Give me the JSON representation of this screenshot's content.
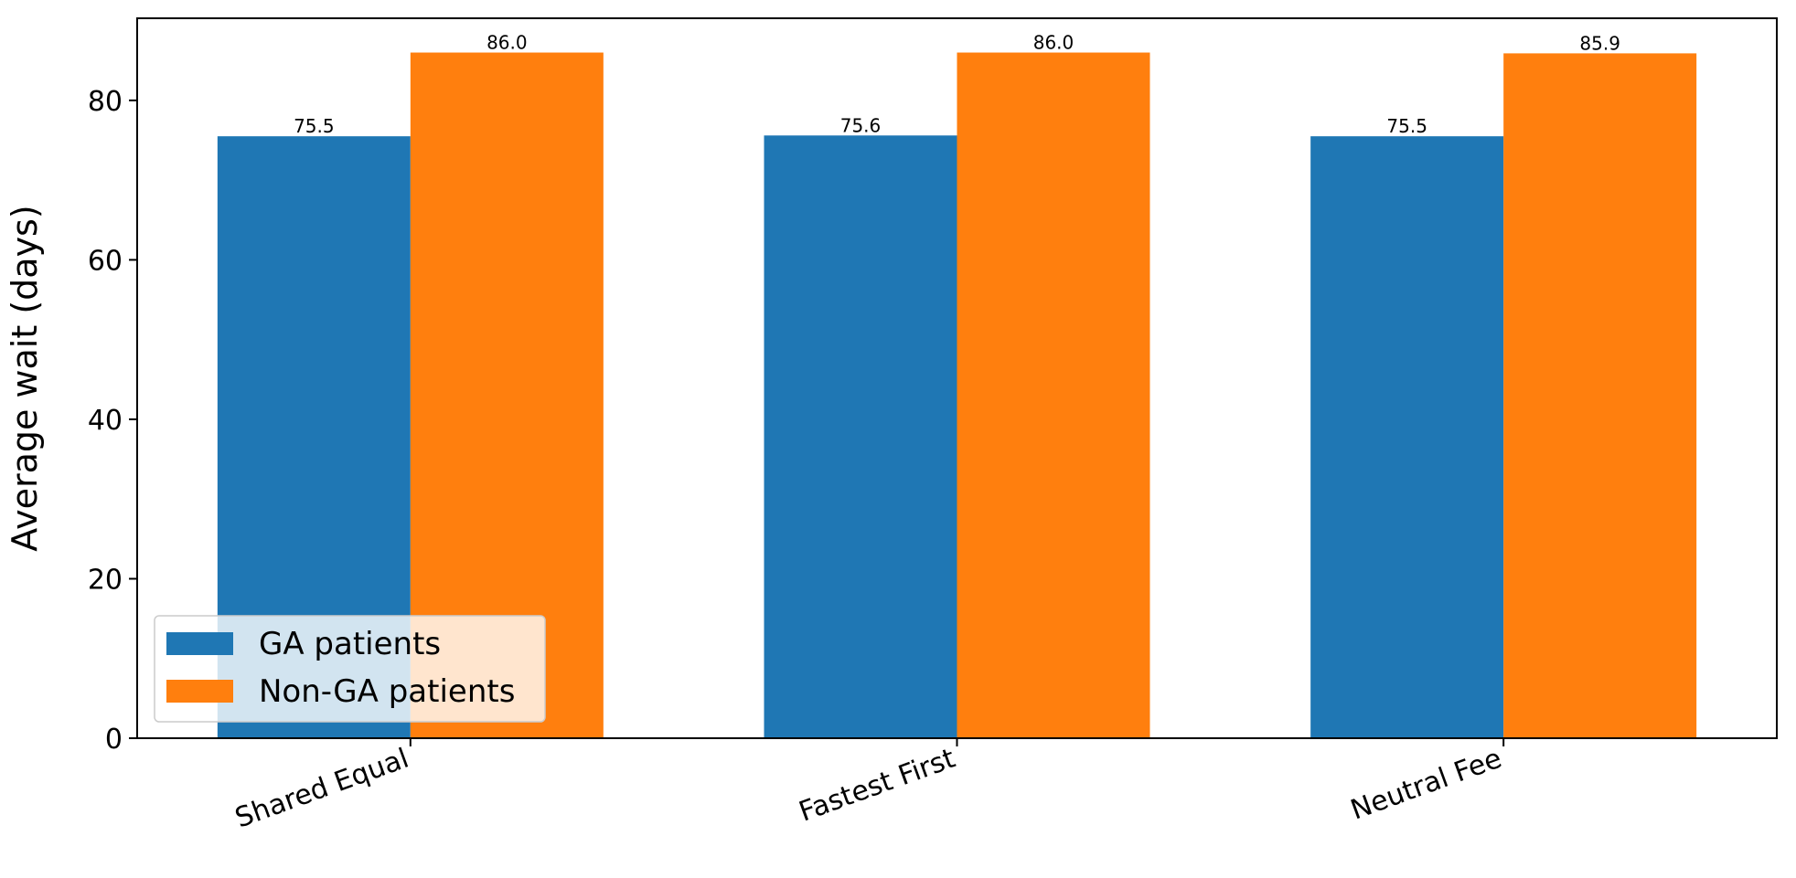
{
  "chart_data": {
    "type": "bar",
    "categories": [
      "Shared Equal",
      "Fastest First",
      "Neutral Fee"
    ],
    "series": [
      {
        "name": "GA patients",
        "values": [
          75.5,
          75.6,
          75.5
        ],
        "color": "#1f77b4"
      },
      {
        "name": "Non-GA patients",
        "values": [
          86.0,
          86.0,
          85.9
        ],
        "color": "#ff7f0e"
      }
    ],
    "data_labels": [
      [
        "75.5",
        "75.6",
        "75.5"
      ],
      [
        "86.0",
        "86.0",
        "85.9"
      ]
    ],
    "xlabel": "",
    "ylabel": "Average wait (days)",
    "ylim": [
      0,
      90.3
    ],
    "yticks": [
      0,
      20,
      40,
      60,
      80
    ],
    "grid": false,
    "legend_position": "lower-left"
  }
}
